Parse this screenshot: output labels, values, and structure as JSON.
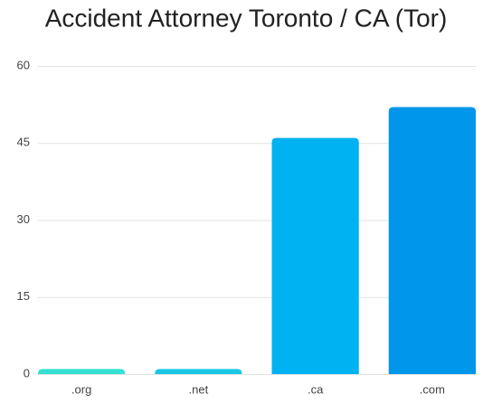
{
  "chart_data": {
    "type": "bar",
    "title": "Accident Attorney Toronto / CA (Tor)",
    "categories": [
      ".org",
      ".net",
      ".ca",
      ".com"
    ],
    "values": [
      1,
      1,
      46,
      52
    ],
    "colors": [
      "#33e0d2",
      "#1ac6e6",
      "#00b2f2",
      "#0096ea"
    ],
    "ylim": [
      0,
      60
    ],
    "yticks": [
      0,
      15,
      30,
      45,
      60
    ],
    "grid": true
  }
}
